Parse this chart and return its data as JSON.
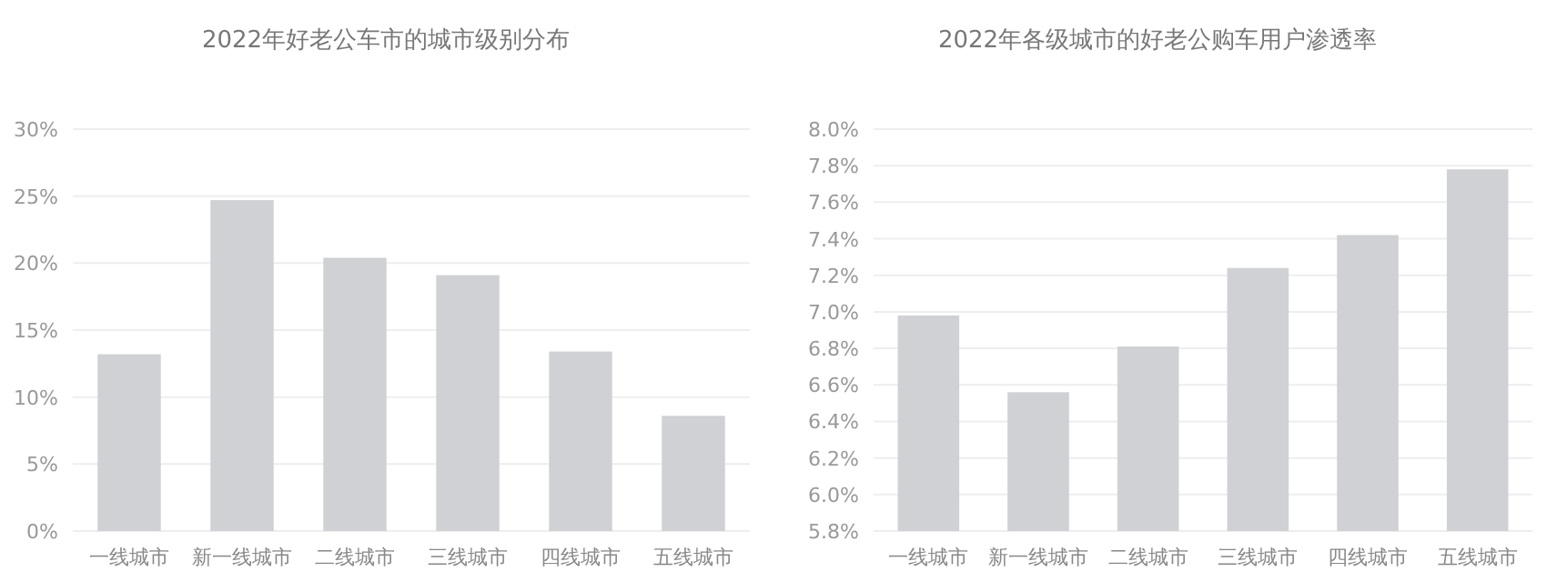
{
  "chart_data": [
    {
      "type": "bar",
      "title": "2022年好老公车市的城市级别分布",
      "categories": [
        "一线城市",
        "新一线城市",
        "二线城市",
        "三线城市",
        "四线城市",
        "五线城市"
      ],
      "values": [
        13.2,
        24.7,
        20.4,
        19.1,
        13.4,
        8.6
      ],
      "color": "#cfd1d4",
      "ylim": [
        0,
        30
      ],
      "yticks": [
        {
          "value": 0,
          "label": "0%"
        },
        {
          "value": 5,
          "label": "5%"
        },
        {
          "value": 10,
          "label": "10%"
        },
        {
          "value": 15,
          "label": "15%"
        },
        {
          "value": 20,
          "label": "20%"
        },
        {
          "value": 25,
          "label": "25%"
        },
        {
          "value": 30,
          "label": "30%"
        }
      ],
      "grid": "y"
    },
    {
      "type": "bar",
      "title": "2022年各级城市的好老公购车用户渗透率",
      "categories": [
        "一线城市",
        "新一线城市",
        "二线城市",
        "三线城市",
        "四线城市",
        "五线城市"
      ],
      "values": [
        6.98,
        6.56,
        6.81,
        7.24,
        7.42,
        7.78
      ],
      "color": "#cfd1d4",
      "ylim": [
        5.8,
        8.0
      ],
      "yticks": [
        {
          "value": 5.8,
          "label": "5.8%"
        },
        {
          "value": 6.0,
          "label": "6.0%"
        },
        {
          "value": 6.2,
          "label": "6.2%"
        },
        {
          "value": 6.4,
          "label": "6.4%"
        },
        {
          "value": 6.6,
          "label": "6.6%"
        },
        {
          "value": 6.8,
          "label": "6.8%"
        },
        {
          "value": 7.0,
          "label": "7.0%"
        },
        {
          "value": 7.2,
          "label": "7.2%"
        },
        {
          "value": 7.4,
          "label": "7.4%"
        },
        {
          "value": 7.6,
          "label": "7.6%"
        },
        {
          "value": 7.8,
          "label": "7.8%"
        },
        {
          "value": 8.0,
          "label": "8.0%"
        }
      ],
      "grid": "y"
    }
  ]
}
